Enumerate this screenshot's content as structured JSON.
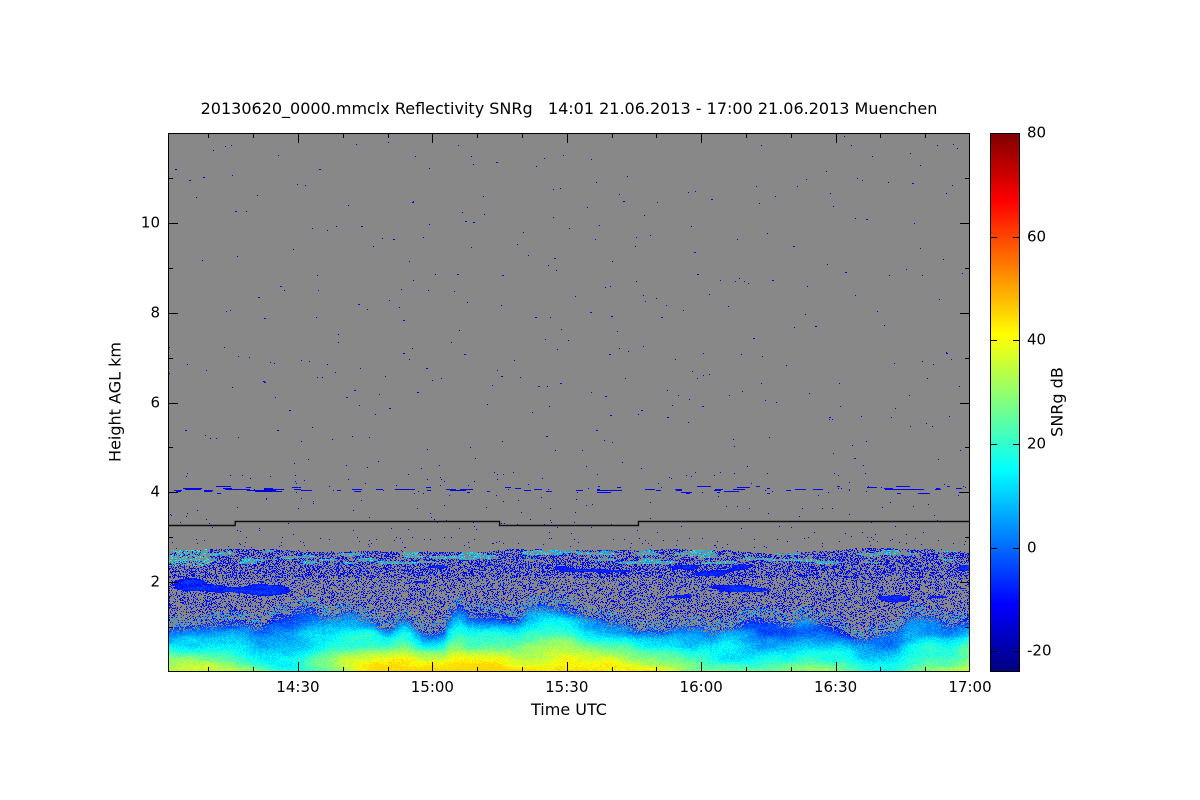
{
  "chart_data": {
    "type": "heatmap",
    "title": "20130620_0000.mmclx Reflectivity SNRg   14:01 21.06.2013 - 17:00 21.06.2013 Muenchen",
    "xlabel": "Time UTC",
    "ylabel": "Height AGL km",
    "x_axis": {
      "start_label": "14:01",
      "end_label": "17:00",
      "start_min": 841,
      "end_min": 1020,
      "ticks": [
        {
          "minute": 870,
          "label": "14:30"
        },
        {
          "minute": 900,
          "label": "15:00"
        },
        {
          "minute": 930,
          "label": "15:30"
        },
        {
          "minute": 960,
          "label": "16:00"
        },
        {
          "minute": 990,
          "label": "16:30"
        },
        {
          "minute": 1020,
          "label": "17:00"
        }
      ],
      "minor_tick_step_min": 10
    },
    "y_axis": {
      "lim": [
        0,
        12
      ],
      "unit": "km",
      "ticks": [
        {
          "km": 2,
          "label": "2"
        },
        {
          "km": 4,
          "label": "4"
        },
        {
          "km": 6,
          "label": "6"
        },
        {
          "km": 8,
          "label": "8"
        },
        {
          "km": 10,
          "label": "10"
        }
      ],
      "minor_tick_step_km": 1
    },
    "colorbar": {
      "label": "SNRg dB",
      "vmin": -24,
      "vmax": 80,
      "colormap": "jet",
      "ticks": [
        {
          "value": 80,
          "label": "80"
        },
        {
          "value": 60,
          "label": "60"
        },
        {
          "value": 40,
          "label": "40"
        },
        {
          "value": 20,
          "label": "20"
        },
        {
          "value": 0,
          "label": "0"
        },
        {
          "value": -20,
          "label": "-20"
        }
      ]
    },
    "nodata_color": "#888888",
    "features": {
      "background": "uniform gray where signal is below detection threshold",
      "sparse_noise_pixels": {
        "height_km": [
          3.0,
          11.9
        ],
        "snr_db": [
          -20,
          -11
        ],
        "appearance": "very sparse isolated dark-blue single pixels scattered over the gray field"
      },
      "thin_echo_band": {
        "height_km": [
          3.97,
          4.15
        ],
        "snr_db": [
          -18,
          -10
        ],
        "appearance": "intermittent thin band of short horizontal blue dashes spanning the full time range"
      },
      "stepped_black_line": {
        "segments_min_km": [
          [
            841,
            3.28
          ],
          [
            856,
            3.37
          ],
          [
            915,
            3.28
          ],
          [
            946,
            3.37
          ]
        ],
        "end_min": 1020,
        "appearance": "thin black stepped horizontal line near 3.3 km"
      },
      "speckle_layer": {
        "height_km": [
          1.5,
          2.78
        ],
        "snr_db": [
          -17,
          17
        ],
        "appearance": "dense blue speckle over gray, cyan streaks near 2.4-2.7 km (brightest at left edge), coherent darker blue cloud patches near 1.6-2.3 km"
      },
      "boundary_layer": {
        "top_km": [
          0.8,
          1.8
        ],
        "snr_db": [
          -6,
          45
        ],
        "appearance": "continuous echo: yellow-green (35-45 dB) near the surface grading to cyan then blue at a ragged, plume-like top edge"
      }
    }
  }
}
